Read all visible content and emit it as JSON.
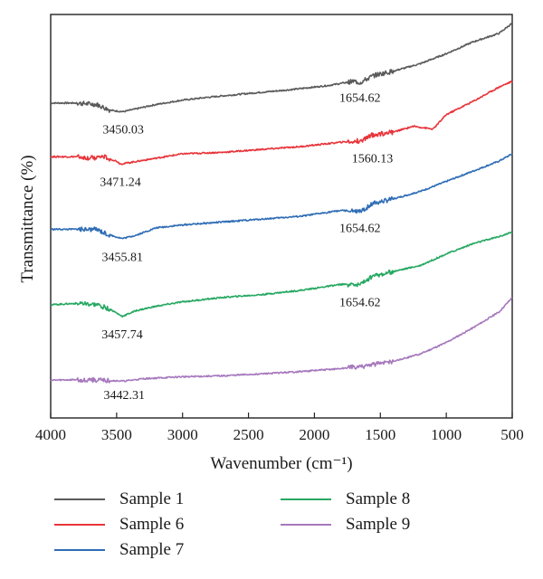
{
  "chart_data": {
    "type": "line",
    "title": "",
    "xlabel": "Wavenumber (cm⁻¹)",
    "ylabel": "Transmittance (%)",
    "xlim": [
      4000,
      500
    ],
    "x_reversed": true,
    "xticks": [
      4000,
      3500,
      3000,
      2500,
      2000,
      1500,
      1000,
      500
    ],
    "y_units": "arbitrary, vertically offset",
    "grid": false,
    "legend_position": "bottom",
    "series": [
      {
        "name": "Sample 1",
        "color": "#5a5a5a",
        "points": [
          [
            4000,
            9.55
          ],
          [
            3800,
            9.55
          ],
          [
            3650,
            9.5
          ],
          [
            3550,
            9.3
          ],
          [
            3450,
            9.25
          ],
          [
            3350,
            9.35
          ],
          [
            3200,
            9.5
          ],
          [
            3000,
            9.65
          ],
          [
            2800,
            9.75
          ],
          [
            2500,
            9.88
          ],
          [
            2200,
            10.0
          ],
          [
            1900,
            10.15
          ],
          [
            1700,
            10.3
          ],
          [
            1654.62,
            10.25
          ],
          [
            1550,
            10.5
          ],
          [
            1400,
            10.65
          ],
          [
            1200,
            10.9
          ],
          [
            1000,
            11.25
          ],
          [
            800,
            11.65
          ],
          [
            600,
            11.95
          ],
          [
            500,
            12.3
          ]
        ],
        "peaks": [
          {
            "x": 3450.03,
            "label": "3450.03"
          },
          {
            "x": 1654.62,
            "label": "1654.62"
          }
        ]
      },
      {
        "name": "Sample 6",
        "color": "#e8343a",
        "points": [
          [
            4000,
            7.7
          ],
          [
            3800,
            7.7
          ],
          [
            3700,
            7.65
          ],
          [
            3600,
            7.7
          ],
          [
            3500,
            7.55
          ],
          [
            3471.24,
            7.45
          ],
          [
            3400,
            7.5
          ],
          [
            3200,
            7.65
          ],
          [
            3000,
            7.8
          ],
          [
            2700,
            7.85
          ],
          [
            2400,
            7.95
          ],
          [
            2100,
            8.05
          ],
          [
            1800,
            8.2
          ],
          [
            1650,
            8.25
          ],
          [
            1560.13,
            8.45
          ],
          [
            1400,
            8.55
          ],
          [
            1250,
            8.75
          ],
          [
            1100,
            8.65
          ],
          [
            1000,
            9.15
          ],
          [
            800,
            9.6
          ],
          [
            600,
            10.1
          ],
          [
            500,
            10.3
          ]
        ],
        "peaks": [
          {
            "x": 3471.24,
            "label": "3471.24"
          },
          {
            "x": 1560.13,
            "label": "1560.13"
          }
        ]
      },
      {
        "name": "Sample 7",
        "color": "#2f6db5",
        "points": [
          [
            4000,
            5.2
          ],
          [
            3800,
            5.2
          ],
          [
            3650,
            5.2
          ],
          [
            3550,
            5.0
          ],
          [
            3455.81,
            4.88
          ],
          [
            3350,
            5.0
          ],
          [
            3200,
            5.25
          ],
          [
            3000,
            5.35
          ],
          [
            2700,
            5.45
          ],
          [
            2400,
            5.55
          ],
          [
            2100,
            5.65
          ],
          [
            1800,
            5.85
          ],
          [
            1654.62,
            5.8
          ],
          [
            1550,
            6.1
          ],
          [
            1400,
            6.25
          ],
          [
            1200,
            6.5
          ],
          [
            1000,
            6.85
          ],
          [
            800,
            7.2
          ],
          [
            600,
            7.55
          ],
          [
            500,
            7.8
          ]
        ],
        "peaks": [
          {
            "x": 3455.81,
            "label": "3455.81"
          },
          {
            "x": 1654.62,
            "label": "1654.62"
          }
        ]
      },
      {
        "name": "Sample 8",
        "color": "#27a862",
        "points": [
          [
            4000,
            2.6
          ],
          [
            3800,
            2.65
          ],
          [
            3650,
            2.6
          ],
          [
            3550,
            2.45
          ],
          [
            3457.74,
            2.2
          ],
          [
            3350,
            2.4
          ],
          [
            3200,
            2.55
          ],
          [
            3000,
            2.7
          ],
          [
            2700,
            2.85
          ],
          [
            2400,
            2.95
          ],
          [
            2100,
            3.1
          ],
          [
            1800,
            3.3
          ],
          [
            1654.62,
            3.3
          ],
          [
            1550,
            3.6
          ],
          [
            1400,
            3.75
          ],
          [
            1200,
            3.95
          ],
          [
            1000,
            4.35
          ],
          [
            800,
            4.7
          ],
          [
            600,
            4.95
          ],
          [
            500,
            5.1
          ]
        ],
        "peaks": [
          {
            "x": 3457.74,
            "label": "3457.74"
          },
          {
            "x": 1654.62,
            "label": "1654.62"
          }
        ]
      },
      {
        "name": "Sample 9",
        "color": "#a678bd",
        "points": [
          [
            4000,
            0.0
          ],
          [
            3800,
            0.02
          ],
          [
            3600,
            0.0
          ],
          [
            3442.31,
            -0.03
          ],
          [
            3300,
            0.05
          ],
          [
            3000,
            0.12
          ],
          [
            2700,
            0.15
          ],
          [
            2400,
            0.22
          ],
          [
            2100,
            0.3
          ],
          [
            1800,
            0.4
          ],
          [
            1600,
            0.5
          ],
          [
            1400,
            0.65
          ],
          [
            1200,
            0.9
          ],
          [
            1000,
            1.3
          ],
          [
            800,
            1.8
          ],
          [
            600,
            2.35
          ],
          [
            500,
            2.85
          ]
        ],
        "peaks": [
          {
            "x": 3442.31,
            "label": "3442.31"
          }
        ]
      }
    ],
    "annotations": [
      {
        "text": "3450.03",
        "x": 3450.03,
        "y": 8.5
      },
      {
        "text": "1654.62",
        "x": 1654.62,
        "y": 9.6
      },
      {
        "text": "3471.24",
        "x": 3471.24,
        "y": 6.7
      },
      {
        "text": "1560.13",
        "x": 1560.13,
        "y": 7.5
      },
      {
        "text": "1654.62",
        "x": 1654.62,
        "y": 5.1
      },
      {
        "text": "3455.81",
        "x": 3455.81,
        "y": 4.1
      },
      {
        "text": "1654.62",
        "x": 1654.62,
        "y": 2.55
      },
      {
        "text": "3457.74",
        "x": 3457.74,
        "y": 1.45
      },
      {
        "text": "3442.31",
        "x": 3442.31,
        "y": -0.65
      }
    ]
  }
}
